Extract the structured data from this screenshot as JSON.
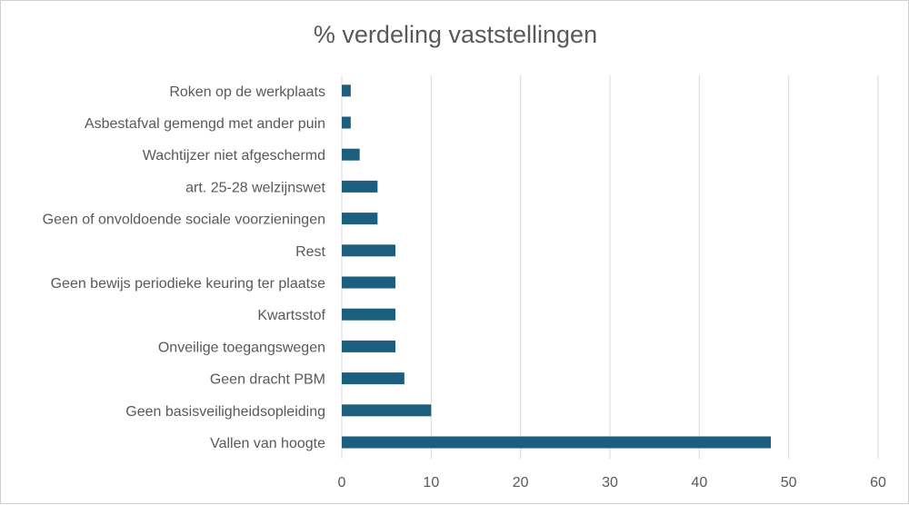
{
  "chart_data": {
    "type": "bar",
    "orientation": "horizontal",
    "title": "% verdeling vaststellingen",
    "categories": [
      "Vallen van hoogte",
      "Geen basisveiligheidsopleiding",
      "Geen dracht PBM",
      "Onveilige toegangswegen",
      "Kwartsstof",
      "Geen bewijs periodieke keuring ter plaatse",
      "Rest",
      "Geen of onvoldoende sociale voorzieningen",
      "art. 25-28 welzijnswet",
      "Wachtijzer niet afgeschermd",
      "Asbestafval gemengd met ander puin",
      "Roken op de werkplaats"
    ],
    "values": [
      48,
      10,
      7,
      6,
      6,
      6,
      6,
      4,
      4,
      2,
      1,
      1
    ],
    "xlim": [
      0,
      60
    ],
    "xticks": [
      0,
      10,
      20,
      30,
      40,
      50,
      60
    ],
    "xlabel": "",
    "ylabel": "",
    "grid": "vertical",
    "legend": "none",
    "colors": {
      "bar": "#1b5e7e",
      "grid": "#d9d9d9",
      "text": "#595959"
    }
  }
}
